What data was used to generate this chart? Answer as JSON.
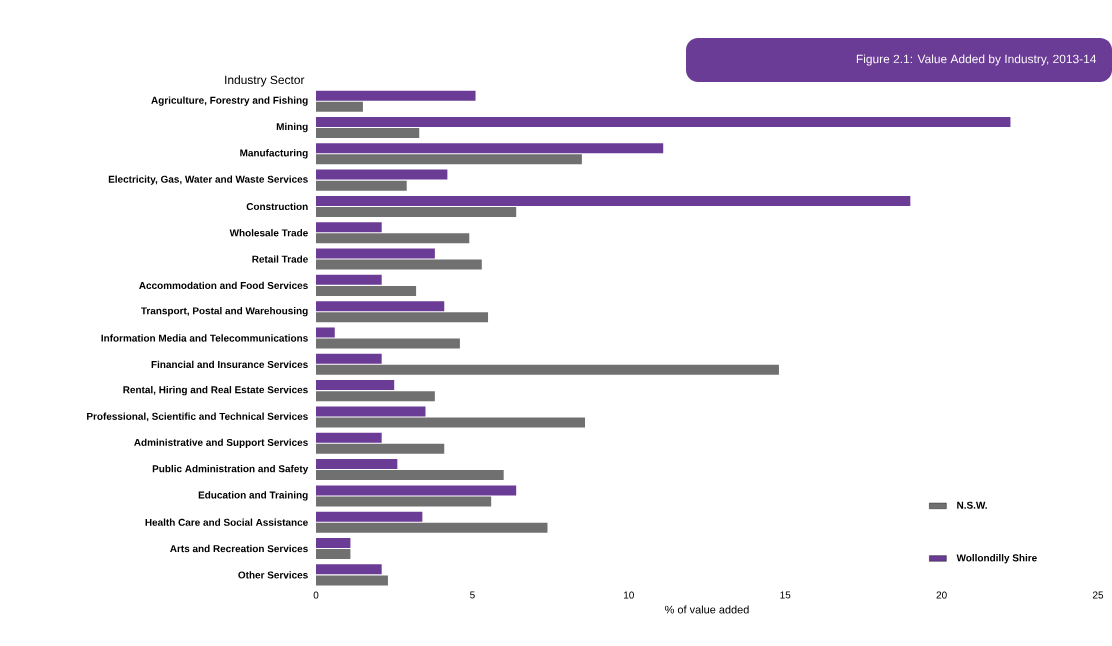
{
  "chart_data": {
    "type": "bar",
    "orientation": "horizontal",
    "title": "Figure 2.1: Value Added by Industry, 2013-14",
    "xlabel": "% of value added",
    "ylabel": "Industry Sector",
    "categories": [
      "Agriculture, Forestry and Fishing",
      "Mining",
      "Manufacturing",
      "Electricity, Gas, Water and Waste Services",
      "Construction",
      "Wholesale Trade",
      "Retail Trade",
      "Accommodation and Food Services",
      "Transport, Postal and Warehousing",
      "Information Media and Telecommunications",
      "Financial and Insurance Services",
      "Rental, Hiring and Real Estate Services",
      "Professional, Scientific and Technical Services",
      "Administrative and Support Services",
      "Public Administration and Safety",
      "Education and Training",
      "Health Care and Social Assistance",
      "Arts and Recreation Services",
      "Other Services"
    ],
    "series": [
      {
        "name": "N.S.W.",
        "color": "#707070",
        "values": [
          1.5,
          3.3,
          8.5,
          2.9,
          6.4,
          4.9,
          5.3,
          3.2,
          5.5,
          4.6,
          14.8,
          3.8,
          8.6,
          4.1,
          6.0,
          5.6,
          7.4,
          1.1,
          2.3
        ]
      },
      {
        "name": "Wollondilly Shire",
        "color": "#6b3c96",
        "values": [
          5.1,
          22.2,
          11.1,
          4.2,
          19.0,
          2.1,
          3.8,
          2.1,
          4.1,
          0.6,
          2.1,
          2.5,
          3.5,
          2.1,
          2.6,
          6.4,
          3.4,
          1.1,
          2.1
        ]
      }
    ],
    "xlim": [
      0,
      25
    ],
    "xticks": [
      0,
      5,
      10,
      15,
      20,
      25
    ],
    "legend": "right"
  }
}
